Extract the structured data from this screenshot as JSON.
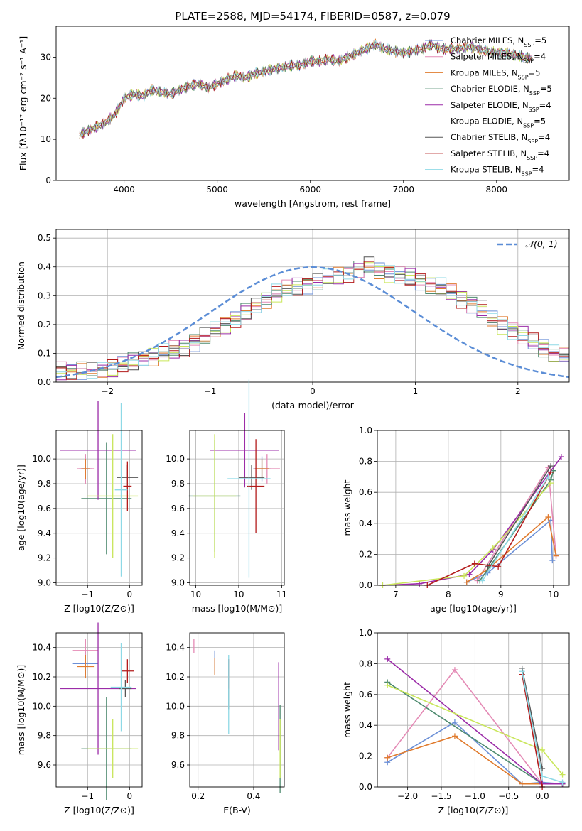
{
  "figure": {
    "title": "PLATE=2588, MJD=54174, FIBERID=0587, z=0.079"
  },
  "colors": {
    "Chabrier MILES": "#6b8fd6",
    "Salpeter MILES": "#e48ab5",
    "Kroupa MILES": "#e07b2e",
    "Chabrier ELODIE": "#4d8a6e",
    "Salpeter ELODIE": "#9b2ca8",
    "Kroupa ELODIE": "#c9e65a",
    "Chabrier STELIB": "#555555",
    "Salpeter STELIB": "#b31b1b",
    "Kroupa STELIB": "#8ed9e6",
    "gaussian": "#5b8dd6",
    "grid": "#b0b0b0"
  },
  "chart_data": [
    {
      "id": "spectrum",
      "type": "line",
      "title": "PLATE=2588, MJD=54174, FIBERID=0587, z=0.079",
      "xlabel": "wavelength [Angstrom, rest frame]",
      "ylabel": "Flux [fλ10⁻¹⁷ erg cm⁻² s⁻¹ A⁻¹]",
      "xlim": [
        3270,
        8780
      ],
      "ylim": [
        0,
        37.5
      ],
      "xticks": [
        4000,
        5000,
        6000,
        7000,
        8000
      ],
      "yticks": [
        0,
        10,
        20,
        30
      ],
      "grid": false,
      "legend_position": "right",
      "x": [
        3520,
        3600,
        3700,
        3800,
        3900,
        4000,
        4100,
        4200,
        4300,
        4400,
        4500,
        4600,
        4700,
        4800,
        4900,
        5000,
        5100,
        5200,
        5300,
        5400,
        5500,
        5600,
        5700,
        5800,
        5900,
        6000,
        6100,
        6200,
        6300,
        6400,
        6500,
        6600,
        6700,
        6800,
        6900,
        7000,
        7100,
        7200,
        7300,
        7400,
        7500,
        7600,
        7700,
        7800,
        7900,
        8000,
        8100,
        8200,
        8300,
        8400
      ],
      "series": [
        {
          "name": "Chabrier MILES, N_SSP=5",
          "values": [
            11,
            12,
            13,
            14,
            16,
            20,
            21,
            20.5,
            22,
            21.5,
            21,
            22,
            23,
            23.5,
            22.5,
            23.5,
            24.5,
            25.5,
            25,
            26,
            26.5,
            27,
            27.5,
            28,
            28,
            29,
            29,
            29.5,
            29,
            30,
            31,
            32,
            33,
            32,
            31.5,
            31,
            31.5,
            32,
            33,
            32,
            32,
            32,
            32.5,
            32,
            31.5,
            31,
            31,
            30.5,
            30,
            29.5
          ]
        },
        {
          "name": "Salpeter MILES, N_SSP=4",
          "values": [
            11,
            12,
            13,
            14,
            16,
            20,
            21,
            20.5,
            22,
            21.5,
            21,
            22,
            23,
            23.5,
            22.5,
            23.5,
            24.5,
            25.5,
            25,
            26,
            26.5,
            27,
            27.5,
            28,
            28,
            29,
            29,
            29.5,
            29,
            30,
            31,
            32,
            33,
            32,
            31.5,
            31,
            31.5,
            32,
            33,
            32,
            32,
            32,
            32.5,
            32,
            31.5,
            31,
            31,
            30.5,
            30,
            29.5
          ]
        },
        {
          "name": "Kroupa MILES, N_SSP=5",
          "values": [
            11,
            12,
            13,
            14,
            16,
            20,
            21,
            20.5,
            22,
            21.5,
            21,
            22,
            23,
            23.5,
            22.5,
            23.5,
            24.5,
            25.5,
            25,
            26,
            26.5,
            27,
            27.5,
            28,
            28,
            29,
            29,
            29.5,
            29,
            30,
            31,
            32,
            33,
            32,
            31.5,
            31,
            31.5,
            32,
            33,
            32,
            32,
            32,
            32.5,
            32,
            31.5,
            31,
            31,
            30.5,
            30,
            29.5
          ]
        },
        {
          "name": "Chabrier ELODIE, N_SSP=5",
          "values": [
            11,
            12,
            13,
            14,
            16,
            20,
            21,
            20.5,
            22,
            21.5,
            21,
            22,
            23,
            23.5,
            22.5,
            23.5,
            24.5,
            25.5,
            25,
            26,
            26.5,
            27,
            27.5,
            28,
            28,
            29,
            29,
            29.5,
            29,
            30,
            31,
            32,
            33,
            32,
            31.5,
            31,
            31.5,
            32,
            33,
            32,
            32,
            32,
            32.5,
            32,
            31.5,
            31,
            31,
            30.5,
            30,
            29.5
          ]
        },
        {
          "name": "Salpeter ELODIE, N_SSP=4",
          "values": [
            11,
            12,
            13,
            14,
            16,
            20,
            21,
            20.5,
            22,
            21.5,
            21,
            22,
            23,
            23.5,
            22.5,
            23.5,
            24.5,
            25.5,
            25,
            26,
            26.5,
            27,
            27.5,
            28,
            28,
            29,
            29,
            29.5,
            29,
            30,
            31,
            32,
            33,
            32,
            31.5,
            31,
            31.5,
            32,
            33,
            32,
            32,
            32,
            32.5,
            32,
            31.5,
            31,
            31,
            30.5,
            30,
            29.5
          ]
        },
        {
          "name": "Kroupa ELODIE, N_SSP=5",
          "values": [
            11,
            12,
            13,
            14,
            16,
            20,
            21,
            20.5,
            22,
            21.5,
            21,
            22,
            23,
            23.5,
            22.5,
            23.5,
            24.5,
            25.5,
            25,
            26,
            26.5,
            27,
            27.5,
            28,
            28,
            29,
            29,
            29.5,
            29,
            30,
            31,
            32,
            33,
            32,
            31.5,
            31,
            31.5,
            32,
            33,
            32,
            32,
            32,
            32.5,
            32,
            31.5,
            31,
            31,
            30.5,
            30,
            29.5
          ]
        },
        {
          "name": "Chabrier STELIB, N_SSP=4",
          "values": [
            11,
            12,
            13,
            14,
            16,
            20,
            21,
            20.5,
            22,
            21.5,
            21,
            22,
            23,
            23.5,
            22.5,
            23.5,
            24.5,
            25.5,
            25,
            26,
            26.5,
            27,
            27.5,
            28,
            28,
            29,
            29,
            29.5,
            29,
            30,
            31,
            32,
            33,
            32,
            31.5,
            31,
            31.5,
            32,
            33,
            32,
            32,
            32,
            32.5,
            32,
            31.5,
            31,
            31,
            30.5,
            30,
            29.5
          ]
        },
        {
          "name": "Salpeter STELIB, N_SSP=4",
          "values": [
            11,
            12,
            13,
            14,
            16,
            20,
            21,
            20.5,
            22,
            21.5,
            21,
            22,
            23,
            23.5,
            22.5,
            23.5,
            24.5,
            25.5,
            25,
            26,
            26.5,
            27,
            27.5,
            28,
            28,
            29,
            29,
            29.5,
            29,
            30,
            31,
            32,
            33,
            32,
            31.5,
            31,
            31.5,
            32,
            33,
            32,
            32,
            32,
            32.5,
            32,
            31.5,
            31,
            31,
            30.5,
            30,
            29.5
          ]
        },
        {
          "name": "Kroupa STELIB, N_SSP=4",
          "values": [
            11,
            12,
            13,
            14,
            16,
            20,
            21,
            20.5,
            22,
            21.5,
            21,
            22,
            23,
            23.5,
            22.5,
            23.5,
            24.5,
            25.5,
            25,
            26,
            26.5,
            27,
            27.5,
            28,
            28,
            29,
            29,
            29.5,
            29,
            30,
            31,
            32,
            33,
            32,
            31.5,
            31,
            31.5,
            32,
            33,
            32,
            32,
            32,
            32.5,
            32,
            31.5,
            31,
            31,
            30.5,
            30,
            29.5
          ]
        }
      ],
      "legend": [
        {
          "model": "Chabrier MILES",
          "nssp": "5"
        },
        {
          "model": "Salpeter MILES",
          "nssp": "4"
        },
        {
          "model": "Kroupa MILES",
          "nssp": "5"
        },
        {
          "model": "Chabrier ELODIE",
          "nssp": "5"
        },
        {
          "model": "Salpeter ELODIE",
          "nssp": "4"
        },
        {
          "model": "Kroupa ELODIE",
          "nssp": "5"
        },
        {
          "model": "Chabrier STELIB",
          "nssp": "4"
        },
        {
          "model": "Salpeter STELIB",
          "nssp": "4"
        },
        {
          "model": "Kroupa STELIB",
          "nssp": "4"
        }
      ]
    },
    {
      "id": "residuals",
      "type": "histogram",
      "xlabel": "(data-model)/error",
      "ylabel": "Normed distribution",
      "xlim": [
        -2.5,
        2.5
      ],
      "ylim": [
        0,
        0.53
      ],
      "xticks": [
        -2,
        -1,
        0,
        1,
        2
      ],
      "yticks": [
        0.0,
        0.1,
        0.2,
        0.3,
        0.4,
        0.5
      ],
      "grid": true,
      "legend_position": "top-right",
      "legend_label": "𝒩(0, 1)",
      "bin_width": 0.1,
      "x_start": -2.5,
      "values": [
        0.04,
        0.04,
        0.04,
        0.04,
        0.045,
        0.05,
        0.06,
        0.07,
        0.08,
        0.09,
        0.1,
        0.11,
        0.12,
        0.14,
        0.16,
        0.18,
        0.2,
        0.22,
        0.24,
        0.26,
        0.29,
        0.31,
        0.32,
        0.33,
        0.34,
        0.35,
        0.36,
        0.37,
        0.38,
        0.39,
        0.4,
        0.39,
        0.38,
        0.37,
        0.36,
        0.35,
        0.34,
        0.33,
        0.31,
        0.29,
        0.27,
        0.25,
        0.22,
        0.2,
        0.18,
        0.16,
        0.14,
        0.12,
        0.1,
        0.09
      ]
    },
    {
      "id": "age-vs-metallicity",
      "type": "scatter",
      "xlabel": "Z [log10(Z/Z⊙)]",
      "ylabel": "age [log10(age/yr)]",
      "xlim": [
        -1.75,
        0.3
      ],
      "ylim": [
        8.98,
        10.23
      ],
      "xticks": [
        -1,
        0
      ],
      "yticks": [
        9.0,
        9.2,
        9.4,
        9.6,
        9.8,
        10.0
      ],
      "grid": true
    },
    {
      "id": "age-vs-mass",
      "type": "scatter",
      "xlabel": "mass [log10(M/M⊙)]",
      "xlim": [
        9.43,
        10.53
      ],
      "ylim": [
        8.98,
        10.23
      ],
      "xticks": [
        9.5,
        10.0,
        10.5
      ],
      "yticks": [
        9.0,
        9.2,
        9.4,
        9.6,
        9.8,
        10.0
      ],
      "grid": true
    },
    {
      "id": "massweight-vs-age",
      "type": "line",
      "xlabel": "age [log10(age/yr)]",
      "ylabel": "mass weight",
      "xlim": [
        6.65,
        10.3
      ],
      "ylim": [
        0,
        1.0
      ],
      "xticks": [
        7,
        8,
        9,
        10
      ],
      "yticks": [
        0.0,
        0.2,
        0.4,
        0.6,
        0.8,
        1.0
      ],
      "grid": true,
      "series": [
        {
          "name": "Chabrier MILES",
          "x": [
            8.35,
            8.75,
            9.95,
            9.98
          ],
          "y": [
            0.02,
            0.08,
            0.42,
            0.16
          ]
        },
        {
          "name": "Salpeter MILES",
          "x": [
            8.55,
            9.9,
            10.05
          ],
          "y": [
            0.03,
            0.76,
            0.19
          ]
        },
        {
          "name": "Kroupa MILES",
          "x": [
            8.35,
            8.7,
            9.9,
            10.05
          ],
          "y": [
            0.02,
            0.09,
            0.44,
            0.19
          ]
        },
        {
          "name": "Chabrier ELODIE",
          "x": [
            8.6,
            9.95,
            10.0
          ],
          "y": [
            0.03,
            0.68,
            0.74
          ]
        },
        {
          "name": "Salpeter ELODIE",
          "x": [
            6.75,
            7.45,
            8.4,
            8.85,
            10.15
          ],
          "y": [
            0.0,
            0.01,
            0.07,
            0.23,
            0.83
          ]
        },
        {
          "name": "Kroupa ELODIE",
          "x": [
            6.75,
            8.3,
            8.85,
            9.95
          ],
          "y": [
            0.0,
            0.06,
            0.24,
            0.66
          ]
        },
        {
          "name": "Chabrier STELIB",
          "x": [
            8.75,
            9.95
          ],
          "y": [
            0.12,
            0.77
          ]
        },
        {
          "name": "Salpeter STELIB",
          "x": [
            7.6,
            8.5,
            8.95,
            9.95
          ],
          "y": [
            0.0,
            0.14,
            0.12,
            0.73
          ]
        },
        {
          "name": "Kroupa STELIB",
          "x": [
            8.65,
            9.9
          ],
          "y": [
            0.03,
            0.7
          ]
        }
      ]
    },
    {
      "id": "mass-vs-metallicity",
      "type": "scatter",
      "xlabel": "Z [log10(Z/Z⊙)]",
      "ylabel": "mass [log10(M/M⊙)]",
      "xlim": [
        -1.75,
        0.3
      ],
      "ylim": [
        9.45,
        10.5
      ],
      "xticks": [
        -1,
        0
      ],
      "yticks": [
        9.6,
        9.8,
        10.0,
        10.2,
        10.4
      ],
      "grid": true
    },
    {
      "id": "mass-vs-ebv",
      "type": "scatter",
      "xlabel": "E(B-V)",
      "xlim": [
        0.17,
        0.51
      ],
      "ylim": [
        9.45,
        10.5
      ],
      "xticks": [
        0.2,
        0.4
      ],
      "yticks": [
        9.6,
        9.8,
        10.0,
        10.2,
        10.4
      ],
      "grid": true
    },
    {
      "id": "massweight-vs-metallicity",
      "type": "line",
      "xlabel": "Z [log10(Z/Z⊙)]",
      "ylabel": "mass weight",
      "xlim": [
        -2.45,
        0.4
      ],
      "ylim": [
        0,
        1.0
      ],
      "xticks": [
        -2.0,
        -1.5,
        -1.0,
        -0.5,
        0.0
      ],
      "yticks": [
        0.0,
        0.2,
        0.4,
        0.6,
        0.8,
        1.0
      ],
      "grid": true,
      "series": [
        {
          "name": "Chabrier MILES",
          "x": [
            -2.3,
            -1.3,
            -0.3,
            0.0,
            0.3
          ],
          "y": [
            0.16,
            0.42,
            0.02,
            0.03,
            0.02
          ]
        },
        {
          "name": "Salpeter MILES",
          "x": [
            -2.3,
            -1.3,
            0.0,
            0.3
          ],
          "y": [
            0.19,
            0.76,
            0.02,
            0.02
          ]
        },
        {
          "name": "Kroupa MILES",
          "x": [
            -2.3,
            -1.3,
            -0.3,
            0.0,
            0.3
          ],
          "y": [
            0.19,
            0.33,
            0.02,
            0.02,
            0.02
          ]
        },
        {
          "name": "Chabrier ELODIE",
          "x": [
            -2.3,
            0.0,
            0.3
          ],
          "y": [
            0.68,
            0.02,
            0.02
          ]
        },
        {
          "name": "Salpeter ELODIE",
          "x": [
            -2.3,
            0.0,
            0.3
          ],
          "y": [
            0.83,
            0.02,
            0.02
          ]
        },
        {
          "name": "Kroupa ELODIE",
          "x": [
            -2.3,
            0.0,
            0.3
          ],
          "y": [
            0.66,
            0.24,
            0.08
          ]
        },
        {
          "name": "Chabrier STELIB",
          "x": [
            -0.3,
            0.0
          ],
          "y": [
            0.77,
            0.12
          ]
        },
        {
          "name": "Salpeter STELIB",
          "x": [
            -0.3,
            0.0
          ],
          "y": [
            0.73,
            0.0
          ]
        },
        {
          "name": "Kroupa STELIB",
          "x": [
            -0.3,
            0.0,
            0.3
          ],
          "y": [
            0.75,
            0.07,
            0.03
          ]
        }
      ]
    }
  ]
}
